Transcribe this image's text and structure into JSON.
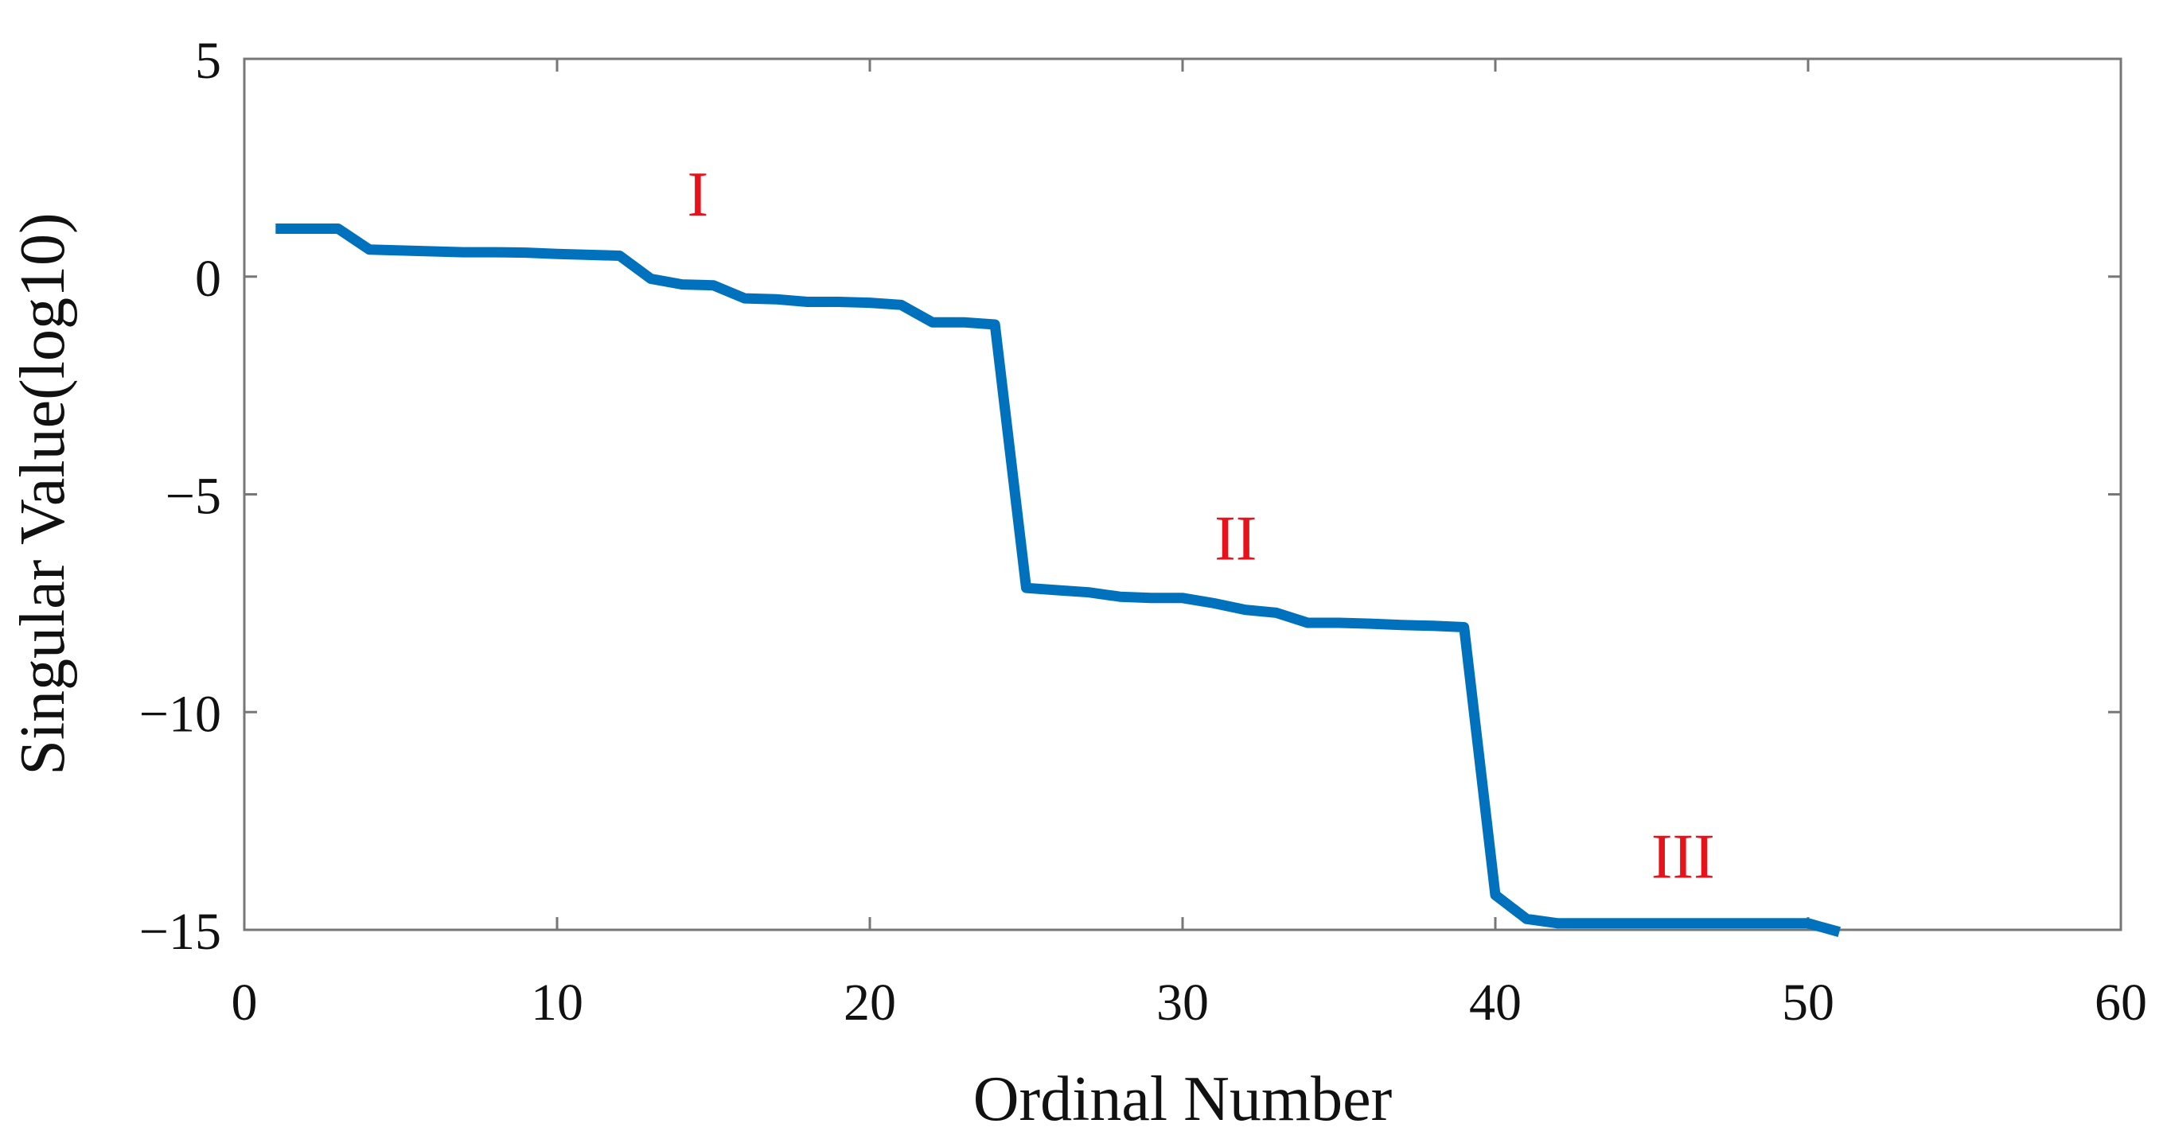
{
  "chart_data": {
    "type": "line",
    "title": "",
    "xlabel": "Ordinal Number",
    "ylabel": "Singular Value(log10)",
    "xlim": [
      0,
      60
    ],
    "ylim": [
      -15,
      5
    ],
    "xticks": [
      0,
      10,
      20,
      30,
      40,
      50,
      60
    ],
    "yticks": [
      5,
      0,
      -5,
      -10,
      -15
    ],
    "xtick_labels": [
      "0",
      "10",
      "20",
      "30",
      "40",
      "50",
      "60"
    ],
    "ytick_labels": [
      "5",
      "0",
      "−5",
      "−10",
      "−15"
    ],
    "grid": false,
    "series": [
      {
        "color": "#0072BD",
        "x": [
          1,
          2,
          3,
          4,
          5,
          6,
          7,
          8,
          9,
          10,
          11,
          12,
          13,
          14,
          15,
          16,
          17,
          18,
          19,
          20,
          21,
          22,
          23,
          24,
          25,
          26,
          27,
          28,
          29,
          30,
          31,
          32,
          33,
          34,
          35,
          36,
          37,
          38,
          39,
          40,
          41,
          42,
          43,
          44,
          45,
          46,
          47,
          48,
          49,
          50,
          51
        ],
        "y": [
          1.1,
          1.1,
          1.1,
          0.62,
          0.6,
          0.58,
          0.56,
          0.56,
          0.55,
          0.52,
          0.5,
          0.48,
          -0.05,
          -0.18,
          -0.2,
          -0.5,
          -0.52,
          -0.58,
          -0.58,
          -0.6,
          -0.65,
          -1.05,
          -1.05,
          -1.1,
          -7.15,
          -7.2,
          -7.25,
          -7.35,
          -7.38,
          -7.38,
          -7.5,
          -7.65,
          -7.72,
          -7.95,
          -7.95,
          -7.97,
          -8.0,
          -8.02,
          -8.05,
          -14.2,
          -14.75,
          -14.85,
          -14.85,
          -14.85,
          -14.85,
          -14.85,
          -14.85,
          -14.85,
          -14.85,
          -14.85,
          -15.05
        ]
      }
    ],
    "annotations": [
      {
        "text": "I",
        "x": 14.5,
        "y": 1.4,
        "color": "#e8121b"
      },
      {
        "text": "II",
        "x": 31.7,
        "y": -6.5,
        "color": "#e8121b"
      },
      {
        "text": "III",
        "x": 46.0,
        "y": -13.8,
        "color": "#e8121b"
      }
    ]
  }
}
